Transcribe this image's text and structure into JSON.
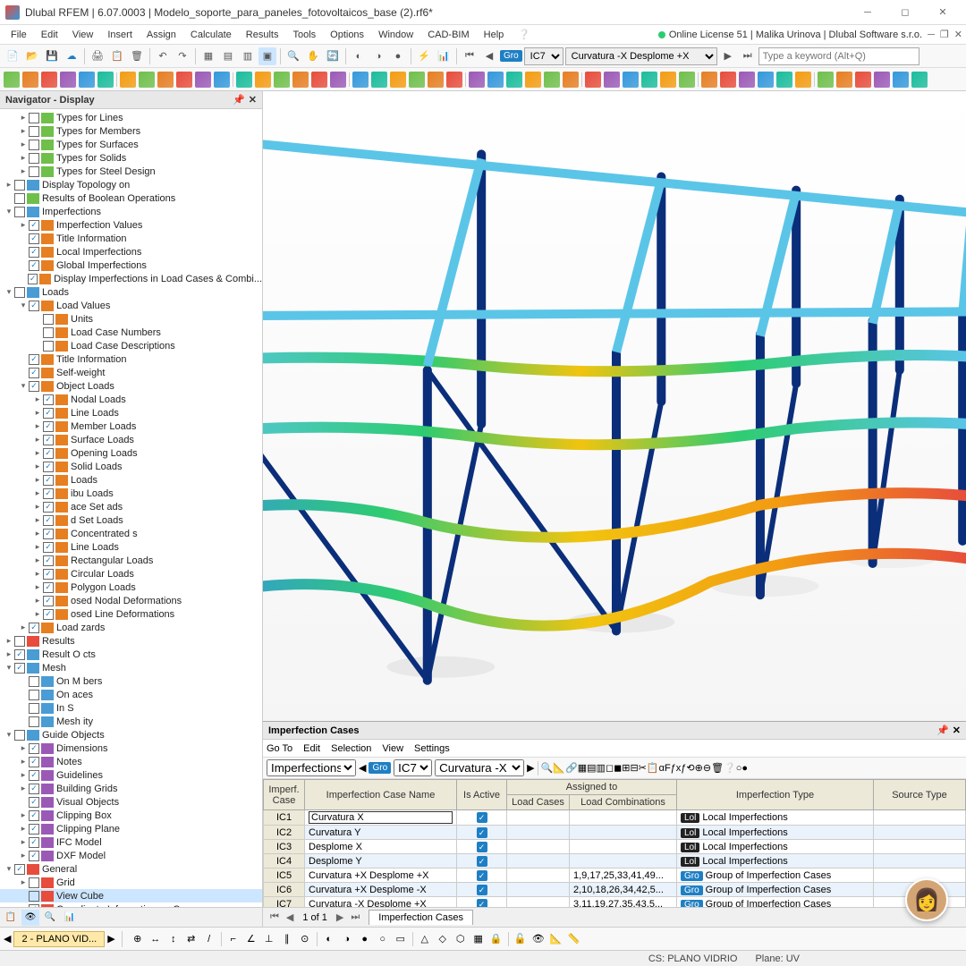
{
  "titlebar": {
    "title": "Dlubal RFEM | 6.07.0003 | Modelo_soporte_para_paneles_fotovoltaicos_base (2).rf6*"
  },
  "license": "Online License 51 | Malika Urinova | Dlubal Software s.r.o.",
  "menubar": [
    "File",
    "Edit",
    "View",
    "Insert",
    "Assign",
    "Calculate",
    "Results",
    "Tools",
    "Options",
    "Window",
    "CAD-BIM",
    "Help"
  ],
  "tb1": {
    "search_placeholder": "Type a keyword (Alt+Q)",
    "tag1": "Gro",
    "sel1": "IC7",
    "sel2": "Curvatura -X Desplome +X"
  },
  "nav": {
    "title": "Navigator - Display",
    "items": [
      {
        "d": 1,
        "e": ">",
        "c": 0,
        "ico": "#6fbf4b",
        "l": "Types for Lines"
      },
      {
        "d": 1,
        "e": ">",
        "c": 0,
        "ico": "#6fbf4b",
        "l": "Types for Members"
      },
      {
        "d": 1,
        "e": ">",
        "c": 0,
        "ico": "#6fbf4b",
        "l": "Types for Surfaces"
      },
      {
        "d": 1,
        "e": ">",
        "c": 0,
        "ico": "#6fbf4b",
        "l": "Types for Solids"
      },
      {
        "d": 1,
        "e": ">",
        "c": 0,
        "ico": "#6fbf4b",
        "l": "Types for Steel Design"
      },
      {
        "d": 0,
        "e": ">",
        "c": 0,
        "ico": "#4a9cd4",
        "l": "Display Topology on"
      },
      {
        "d": 0,
        "e": "",
        "c": 0,
        "ico": "#6fbf4b",
        "l": "Results of Boolean Operations"
      },
      {
        "d": 0,
        "e": "v",
        "c": 0,
        "ico": "#4a9cd4",
        "l": "Imperfections"
      },
      {
        "d": 1,
        "e": ">",
        "c": 1,
        "ico": "#e67e22",
        "l": "Imperfection Values"
      },
      {
        "d": 1,
        "e": "",
        "c": 1,
        "ico": "#e67e22",
        "l": "Title Information"
      },
      {
        "d": 1,
        "e": "",
        "c": 1,
        "ico": "#e67e22",
        "l": "Local Imperfections"
      },
      {
        "d": 1,
        "e": "",
        "c": 1,
        "ico": "#e67e22",
        "l": "Global Imperfections"
      },
      {
        "d": 1,
        "e": "",
        "c": 1,
        "ico": "#e67e22",
        "l": "Display Imperfections in Load Cases & Combi..."
      },
      {
        "d": 0,
        "e": "v",
        "c": 0,
        "ico": "#4a9cd4",
        "l": "Loads"
      },
      {
        "d": 1,
        "e": "v",
        "c": 1,
        "ico": "#e67e22",
        "l": "Load Values"
      },
      {
        "d": 2,
        "e": "",
        "c": 0,
        "ico": "#e67e22",
        "l": "Units"
      },
      {
        "d": 2,
        "e": "",
        "c": 0,
        "ico": "#e67e22",
        "l": "Load Case Numbers"
      },
      {
        "d": 2,
        "e": "",
        "c": 0,
        "ico": "#e67e22",
        "l": "Load Case Descriptions"
      },
      {
        "d": 1,
        "e": "",
        "c": 1,
        "ico": "#e67e22",
        "l": "Title Information"
      },
      {
        "d": 1,
        "e": "",
        "c": 1,
        "ico": "#e67e22",
        "l": "Self-weight"
      },
      {
        "d": 1,
        "e": "v",
        "c": 1,
        "ico": "#e67e22",
        "l": "Object Loads"
      },
      {
        "d": 2,
        "e": ">",
        "c": 1,
        "ico": "#e67e22",
        "l": "Nodal Loads"
      },
      {
        "d": 2,
        "e": ">",
        "c": 1,
        "ico": "#e67e22",
        "l": "Line Loads"
      },
      {
        "d": 2,
        "e": ">",
        "c": 1,
        "ico": "#e67e22",
        "l": "Member Loads"
      },
      {
        "d": 2,
        "e": ">",
        "c": 1,
        "ico": "#e67e22",
        "l": "Surface Loads"
      },
      {
        "d": 2,
        "e": ">",
        "c": 1,
        "ico": "#e67e22",
        "l": "Opening Loads"
      },
      {
        "d": 2,
        "e": ">",
        "c": 1,
        "ico": "#e67e22",
        "l": "Solid Loads"
      },
      {
        "d": 2,
        "e": ">",
        "c": 1,
        "ico": "#e67e22",
        "l": "    Loads"
      },
      {
        "d": 2,
        "e": ">",
        "c": 1,
        "ico": "#e67e22",
        "l": "    ibu    Loads"
      },
      {
        "d": 2,
        "e": ">",
        "c": 1,
        "ico": "#e67e22",
        "l": "    ace Set    ads"
      },
      {
        "d": 2,
        "e": ">",
        "c": 1,
        "ico": "#e67e22",
        "l": "    d Set Loads"
      },
      {
        "d": 2,
        "e": ">",
        "c": 1,
        "ico": "#e67e22",
        "l": "    Concentrated    s"
      },
      {
        "d": 2,
        "e": ">",
        "c": 1,
        "ico": "#e67e22",
        "l": "    Line Loads"
      },
      {
        "d": 2,
        "e": ">",
        "c": 1,
        "ico": "#e67e22",
        "l": "    Rectangular Loads"
      },
      {
        "d": 2,
        "e": ">",
        "c": 1,
        "ico": "#e67e22",
        "l": "    Circular Loads"
      },
      {
        "d": 2,
        "e": ">",
        "c": 1,
        "ico": "#e67e22",
        "l": "    Polygon Loads"
      },
      {
        "d": 2,
        "e": ">",
        "c": 1,
        "ico": "#e67e22",
        "l": "    osed Nodal Deformations"
      },
      {
        "d": 2,
        "e": ">",
        "c": 1,
        "ico": "#e67e22",
        "l": "    osed Line Deformations"
      },
      {
        "d": 1,
        "e": ">",
        "c": 1,
        "ico": "#e67e22",
        "l": "Load    zards"
      },
      {
        "d": 0,
        "e": ">",
        "c": 0,
        "ico": "#e74c3c",
        "l": "Results"
      },
      {
        "d": 0,
        "e": ">",
        "c": 1,
        "ico": "#4a9cd4",
        "l": "Result O    cts"
      },
      {
        "d": 0,
        "e": "v",
        "c": 1,
        "ico": "#4a9cd4",
        "l": "Mesh"
      },
      {
        "d": 1,
        "e": "",
        "c": 0,
        "ico": "#4a9cd4",
        "l": "On M    bers"
      },
      {
        "d": 1,
        "e": "",
        "c": 0,
        "ico": "#4a9cd4",
        "l": "On    aces"
      },
      {
        "d": 1,
        "e": "",
        "c": 0,
        "ico": "#4a9cd4",
        "l": "In S    "
      },
      {
        "d": 1,
        "e": "",
        "c": 0,
        "ico": "#4a9cd4",
        "l": "Mesh    ity"
      },
      {
        "d": 0,
        "e": "v",
        "c": 0,
        "ico": "#4a9cd4",
        "l": "Guide Objects"
      },
      {
        "d": 1,
        "e": ">",
        "c": 1,
        "ico": "#9b59b6",
        "l": "Dimensions"
      },
      {
        "d": 1,
        "e": ">",
        "c": 1,
        "ico": "#9b59b6",
        "l": "Notes"
      },
      {
        "d": 1,
        "e": ">",
        "c": 1,
        "ico": "#9b59b6",
        "l": "Guidelines"
      },
      {
        "d": 1,
        "e": ">",
        "c": 1,
        "ico": "#9b59b6",
        "l": "Building Grids"
      },
      {
        "d": 1,
        "e": "",
        "c": 1,
        "ico": "#9b59b6",
        "l": "Visual Objects"
      },
      {
        "d": 1,
        "e": ">",
        "c": 1,
        "ico": "#9b59b6",
        "l": "Clipping Box"
      },
      {
        "d": 1,
        "e": ">",
        "c": 1,
        "ico": "#9b59b6",
        "l": "Clipping Plane"
      },
      {
        "d": 1,
        "e": ">",
        "c": 1,
        "ico": "#9b59b6",
        "l": "IFC Model"
      },
      {
        "d": 1,
        "e": ">",
        "c": 1,
        "ico": "#9b59b6",
        "l": "DXF Model"
      },
      {
        "d": 0,
        "e": "v",
        "c": 1,
        "ico": "#e74c3c",
        "l": "General"
      },
      {
        "d": 1,
        "e": ">",
        "c": 0,
        "ico": "#e74c3c",
        "l": "Grid"
      },
      {
        "d": 1,
        "e": "",
        "c": 0,
        "ico": "#e74c3c",
        "l": "View Cube",
        "sel": true
      },
      {
        "d": 1,
        "e": ">",
        "c": 1,
        "ico": "#e74c3c",
        "l": "Coordinate Information on Cursor"
      },
      {
        "d": 1,
        "e": ">",
        "c": 1,
        "ico": "#e74c3c",
        "l": "Axis System"
      },
      {
        "d": 1,
        "e": ">",
        "c": 1,
        "ico": "#e74c3c",
        "l": "Show Hidden Objects in Background"
      },
      {
        "d": 1,
        "e": ">",
        "c": 1,
        "ico": "#e74c3c",
        "l": "Show Clipped Areas"
      },
      {
        "d": 1,
        "e": "",
        "c": 1,
        "ico": "#e74c3c",
        "l": "Status of Camera Fly Mode"
      },
      {
        "d": 1,
        "e": ">",
        "c": 1,
        "ico": "#e74c3c",
        "l": "Terrain"
      },
      {
        "d": 0,
        "e": "v",
        "c": 0,
        "ico": "#555",
        "l": "Numbering"
      }
    ]
  },
  "panel": {
    "title": "Imperfection Cases",
    "menu": [
      "Go To",
      "Edit",
      "Selection",
      "View",
      "Settings"
    ],
    "tag1": "Gro",
    "sel1": "IC7",
    "sel2": "Curvatura -X ...",
    "tb_dropdown": "Imperfections",
    "headers_top": {
      "case": "Imperf.\nCase",
      "name": "Imperfection Case Name",
      "active": "Is Active",
      "assigned": "Assigned to",
      "type": "Imperfection Type",
      "source": "Source Type"
    },
    "headers_sub": {
      "lc": "Load Cases",
      "lco": "Load Combinations"
    },
    "rows": [
      {
        "id": "IC1",
        "name": "Curvatura X",
        "active": true,
        "lc": "",
        "lco": "",
        "badge": "Lol",
        "bc": "lo",
        "type": "Local Imperfections",
        "even": false
      },
      {
        "id": "IC2",
        "name": "Curvatura Y",
        "active": true,
        "lc": "",
        "lco": "",
        "badge": "Lol",
        "bc": "lo",
        "type": "Local Imperfections",
        "even": true
      },
      {
        "id": "IC3",
        "name": "Desplome X",
        "active": true,
        "lc": "",
        "lco": "",
        "badge": "Lol",
        "bc": "lo",
        "type": "Local Imperfections",
        "even": false
      },
      {
        "id": "IC4",
        "name": "Desplome Y",
        "active": true,
        "lc": "",
        "lco": "",
        "badge": "Lol",
        "bc": "lo",
        "type": "Local Imperfections",
        "even": true
      },
      {
        "id": "IC5",
        "name": "Curvatura +X Desplome +X",
        "active": true,
        "lc": "",
        "lco": "1,9,17,25,33,41,49...",
        "badge": "Gro",
        "bc": "gr",
        "type": "Group of Imperfection Cases",
        "even": false
      },
      {
        "id": "IC6",
        "name": "Curvatura +X Desplome -X",
        "active": true,
        "lc": "",
        "lco": "2,10,18,26,34,42,5...",
        "badge": "Gro",
        "bc": "gr",
        "type": "Group of Imperfection Cases",
        "even": true
      },
      {
        "id": "IC7",
        "name": "Curvatura -X Desplome +X",
        "active": true,
        "lc": "",
        "lco": "3,11,19,27,35,43,5...",
        "badge": "Gro",
        "bc": "gr",
        "type": "Group of Imperfection Cases",
        "even": false
      }
    ],
    "pager": "1 of 1",
    "tab": "Imperfection Cases"
  },
  "bottom": {
    "tab": "2 - PLANO VID..."
  },
  "status": {
    "cs": "CS: PLANO VIDRIO",
    "plane": "Plane: UV"
  },
  "colors": {
    "accent": "#1e7fc4",
    "beam_dark": "#0b2e7a",
    "beam_light": "#5bc5e8",
    "heat1": "#e74c3c",
    "heat2": "#f39c12",
    "heat3": "#f1c40f",
    "heat4": "#2ecc71",
    "heat5": "#3498db"
  }
}
